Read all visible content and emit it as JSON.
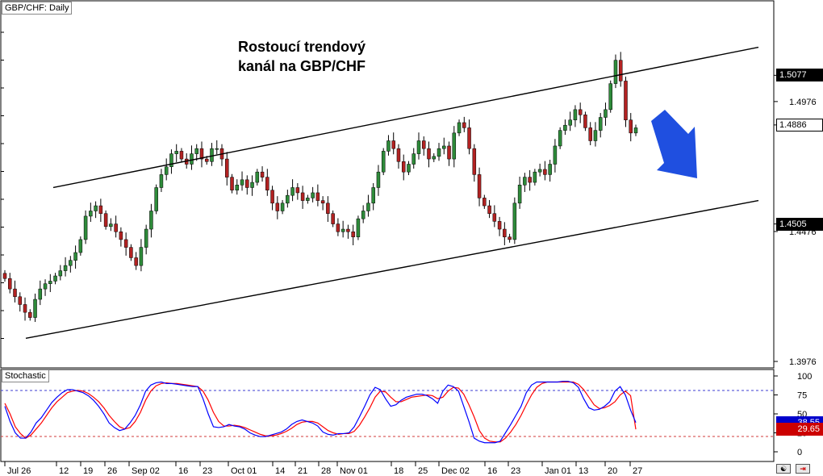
{
  "symbol_label": "GBP/CHF: Daily",
  "title_line1": "Rostoucí trendový",
  "title_line2": "kanál na GBP/CHF",
  "indicator_label": "Stochastic",
  "price_axis": {
    "ticks": [
      "1.5077",
      "1.4976",
      "1.4886",
      "1.4505",
      "1.4476",
      "1.3976"
    ],
    "ylim": [
      1.3976,
      1.5255
    ]
  },
  "price_tags": [
    {
      "value": "1.5077",
      "style": "dark"
    },
    {
      "value": "1.4886",
      "style": "light"
    },
    {
      "value": "1.4505",
      "style": "dark"
    }
  ],
  "stoch_axis": {
    "ticks": [
      "100",
      "75",
      "50",
      "25",
      "0"
    ]
  },
  "stoch_tags": [
    {
      "value": "38.55",
      "color": "#0000cc"
    },
    {
      "value": "29.65",
      "color": "#cc0000"
    }
  ],
  "x_axis": {
    "ticks": [
      "Jul 26",
      "12",
      "19",
      "26",
      "Sep 02",
      "16",
      "23",
      "Oct 01",
      "14",
      "21",
      "28",
      "Nov 01",
      "18",
      "25",
      "Dec 02",
      "16",
      "23",
      "Jan 01",
      "13",
      "20",
      "27"
    ]
  },
  "colors": {
    "bull": "#2e8b3a",
    "bear": "#b22222",
    "k_line": "#0000ff",
    "d_line": "#ff0000",
    "arrow": "#1f4fe0"
  },
  "icons": {
    "scroll": "scroll-icon",
    "close": "close-icon"
  },
  "chart_data": {
    "type": "candlestick",
    "title": "Rostoucí trendový kanál na GBP/CHF",
    "x": [
      "Jul 26",
      "12",
      "19",
      "26",
      "Sep 02",
      "16",
      "23",
      "Oct 01",
      "14",
      "21",
      "28",
      "Nov 01",
      "18",
      "25",
      "Dec 02",
      "16",
      "23",
      "Jan 01",
      "13",
      "20",
      "27"
    ],
    "ylim": [
      1.3976,
      1.5255
    ],
    "close_series": [
      1.4295,
      1.4255,
      1.4225,
      1.4195,
      1.4165,
      1.4145,
      1.4215,
      1.4255,
      1.4275,
      1.4285,
      1.4305,
      1.4325,
      1.4345,
      1.4365,
      1.4395,
      1.4445,
      1.4535,
      1.4555,
      1.4575,
      1.4545,
      1.4495,
      1.4505,
      1.4475,
      1.4445,
      1.4415,
      1.4375,
      1.4345,
      1.4415,
      1.4485,
      1.4555,
      1.4645,
      1.4695,
      1.4725,
      1.4775,
      1.4785,
      1.4755,
      1.4735,
      1.4775,
      1.4795,
      1.4755,
      1.4745,
      1.4795,
      1.4795,
      1.4755,
      1.4685,
      1.4635,
      1.4655,
      1.4675,
      1.4645,
      1.4665,
      1.4705,
      1.4685,
      1.4635,
      1.4585,
      1.4555,
      1.4585,
      1.4615,
      1.4645,
      1.4625,
      1.4595,
      1.4605,
      1.4625,
      1.4595,
      1.4585,
      1.4545,
      1.4505,
      1.4475,
      1.4485,
      1.4475,
      1.4455,
      1.4525,
      1.4555,
      1.4585,
      1.4645,
      1.4705,
      1.4785,
      1.4825,
      1.4795,
      1.4745,
      1.4705,
      1.4735,
      1.4775,
      1.4825,
      1.4795,
      1.4755,
      1.4765,
      1.4795,
      1.4805,
      1.4755,
      1.4855,
      1.4895,
      1.4875,
      1.4795,
      1.4695,
      1.4605,
      1.4575,
      1.4545,
      1.4515,
      1.4485,
      1.4455,
      1.4445,
      1.4585,
      1.4655,
      1.4685,
      1.4665,
      1.4705,
      1.4715,
      1.4695,
      1.4735,
      1.4805,
      1.4865,
      1.4885,
      1.4905,
      1.4945,
      1.4925,
      1.4875,
      1.4825,
      1.4865,
      1.4915,
      1.4945,
      1.5045,
      1.5135,
      1.5055,
      1.4905,
      1.4855,
      1.4875
    ],
    "channel": [
      {
        "name": "",
        "x": [
          "Aug 08",
          "Jan 27"
        ],
        "y": [
          1.4645,
          1.5185
        ]
      },
      {
        "name": "",
        "x": [
          "Jul 26",
          "Jan 27"
        ],
        "y": [
          1.4065,
          1.4595
        ]
      }
    ],
    "stochastic": {
      "ylim": [
        0,
        100
      ],
      "levels": [
        80,
        20
      ],
      "k": [
        60,
        40,
        25,
        18,
        18,
        26,
        38,
        45,
        55,
        65,
        72,
        78,
        82,
        82,
        80,
        78,
        74,
        68,
        60,
        50,
        38,
        32,
        28,
        30,
        38,
        48,
        62,
        80,
        88,
        91,
        92,
        90,
        90,
        89,
        88,
        87,
        86,
        86,
        70,
        50,
        33,
        32,
        33,
        36,
        34,
        33,
        30,
        25,
        22,
        20,
        20,
        22,
        24,
        26,
        30,
        36,
        40,
        42,
        40,
        38,
        34,
        26,
        23,
        22,
        24,
        24,
        25,
        33,
        46,
        60,
        75,
        85,
        82,
        70,
        60,
        62,
        68,
        72,
        74,
        76,
        76,
        74,
        70,
        64,
        80,
        88,
        86,
        80,
        60,
        40,
        18,
        14,
        12,
        12,
        12,
        14,
        25,
        36,
        48,
        60,
        78,
        88,
        92,
        92,
        92,
        92,
        92,
        93,
        93,
        91,
        85,
        70,
        58,
        55,
        56,
        60,
        66,
        80,
        86,
        75,
        55,
        38.55
      ],
      "d": [
        64,
        50,
        33,
        24,
        18,
        22,
        30,
        38,
        48,
        58,
        66,
        72,
        78,
        80,
        81,
        80,
        77,
        72,
        66,
        58,
        48,
        40,
        33,
        30,
        32,
        40,
        52,
        68,
        80,
        87,
        90,
        91,
        90,
        90,
        89,
        88,
        87,
        86,
        80,
        68,
        52,
        40,
        34,
        34,
        35,
        34,
        32,
        29,
        26,
        23,
        21,
        21,
        22,
        24,
        27,
        31,
        36,
        39,
        40,
        40,
        38,
        33,
        28,
        25,
        23,
        24,
        24,
        27,
        35,
        46,
        58,
        72,
        80,
        79,
        72,
        66,
        66,
        69,
        72,
        73,
        74,
        75,
        74,
        70,
        72,
        80,
        85,
        84,
        76,
        62,
        46,
        28,
        18,
        14,
        13,
        13,
        18,
        26,
        36,
        48,
        62,
        75,
        85,
        90,
        92,
        92,
        92,
        92,
        92,
        92,
        89,
        82,
        72,
        62,
        57,
        58,
        61,
        66,
        75,
        80,
        74,
        29.65
      ]
    }
  }
}
